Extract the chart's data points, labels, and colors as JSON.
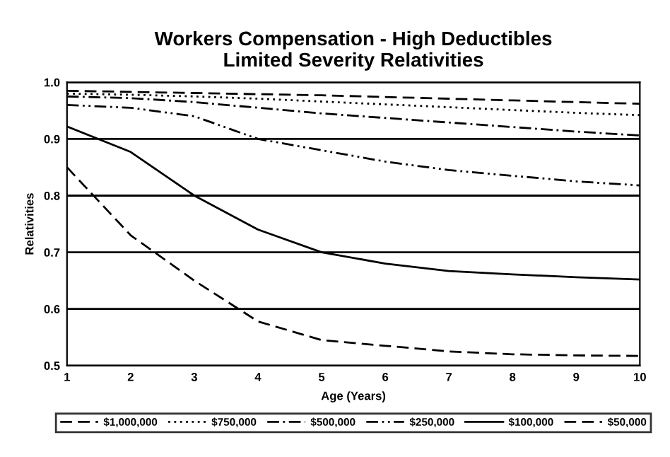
{
  "chart_data": {
    "type": "line",
    "title": "Workers Compensation - High Deductibles\nLimited Severity Relativities",
    "xlabel": "Age (Years)",
    "ylabel": "Relativities",
    "x": [
      1,
      2,
      3,
      4,
      5,
      6,
      7,
      8,
      9,
      10
    ],
    "series": [
      {
        "name": "$1,000,000",
        "color": "#000000",
        "line_style": "dashed",
        "values": [
          0.985,
          0.983,
          0.981,
          0.979,
          0.977,
          0.974,
          0.971,
          0.968,
          0.965,
          0.962
        ]
      },
      {
        "name": "$750,000",
        "color": "#000000",
        "line_style": "dotted",
        "values": [
          0.98,
          0.978,
          0.975,
          0.971,
          0.966,
          0.961,
          0.956,
          0.951,
          0.946,
          0.942
        ]
      },
      {
        "name": "$500,000",
        "color": "#000000",
        "line_style": "dashdot",
        "values": [
          0.975,
          0.972,
          0.965,
          0.955,
          0.945,
          0.937,
          0.929,
          0.921,
          0.913,
          0.906
        ]
      },
      {
        "name": "$250,000",
        "color": "#000000",
        "line_style": "dashdotdot",
        "values": [
          0.96,
          0.955,
          0.94,
          0.9,
          0.88,
          0.86,
          0.845,
          0.835,
          0.825,
          0.818
        ]
      },
      {
        "name": "$100,000",
        "color": "#000000",
        "line_style": "solid",
        "values": [
          0.922,
          0.877,
          0.8,
          0.74,
          0.7,
          0.68,
          0.667,
          0.661,
          0.656,
          0.652
        ]
      },
      {
        "name": "$50,000",
        "color": "#000000",
        "line_style": "dashed",
        "values": [
          0.85,
          0.73,
          0.65,
          0.578,
          0.545,
          0.535,
          0.525,
          0.52,
          0.518,
          0.517
        ]
      }
    ],
    "xlim": [
      1,
      10
    ],
    "xticks": [
      1,
      2,
      3,
      4,
      5,
      6,
      7,
      8,
      9,
      10
    ],
    "ylim": [
      0.5,
      1.0
    ],
    "yticks": [
      {
        "value": 0.5,
        "label": "0.5"
      },
      {
        "value": 0.6,
        "label": "0.6"
      },
      {
        "value": 0.7,
        "label": "0.7"
      },
      {
        "value": 0.8,
        "label": "0.8"
      },
      {
        "value": 0.9,
        "label": "0.9"
      },
      {
        "value": 1.0,
        "label": "1.0"
      }
    ],
    "grid": "y",
    "legend": "bottom",
    "marker": "none"
  }
}
